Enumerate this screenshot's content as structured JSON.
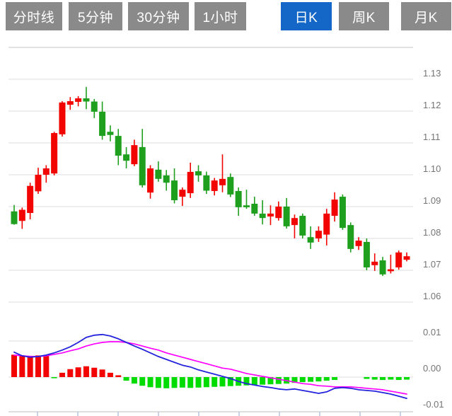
{
  "toolbar": {
    "tabs": [
      {
        "label": "分时线",
        "active": false
      },
      {
        "label": "5分钟",
        "active": false
      },
      {
        "label": "30分钟",
        "active": false
      },
      {
        "label": "1小时",
        "active": false
      },
      {
        "label": "日K",
        "active": true
      },
      {
        "label": "周K",
        "active": false
      },
      {
        "label": "月K",
        "active": false
      }
    ]
  },
  "colors": {
    "tab_bg": "#8a8a8a",
    "tab_active_bg": "#1467c6",
    "tab_text": "#ffffff",
    "candle_up": "#f20400",
    "candle_down": "#1ea01e",
    "hist_up": "#f20400",
    "hist_down": "#00dc00",
    "dif_line": "#2323dd",
    "dea_line": "#ff00ff",
    "grid": "#e4e4e4",
    "frame": "#d8d8d8",
    "bottom_axis": "#c9c9c9",
    "axis_tick": "#b9c8dc",
    "axis_label": "#757575"
  },
  "chart_data": {
    "type": "candlestick",
    "title": "",
    "xlabel": "",
    "ylabel": "",
    "grid": true,
    "legend_position": "none",
    "price_axis": {
      "tick_labels": [
        "1.13",
        "1.12",
        "1.11",
        "1.10",
        "1.09",
        "1.08",
        "1.07",
        "1.06"
      ],
      "tick_values": [
        1.13,
        1.12,
        1.11,
        1.1,
        1.09,
        1.08,
        1.07,
        1.06
      ],
      "range": [
        1.053,
        1.14
      ]
    },
    "indicator_axis": {
      "tick_labels": [
        "0.01",
        "0.00",
        "-0.01"
      ],
      "tick_values": [
        0.01,
        0.0,
        -0.01
      ],
      "range": [
        -0.011,
        0.012
      ]
    },
    "candles_ohlc": [
      [
        1.0885,
        1.0905,
        1.0843,
        1.0845
      ],
      [
        1.0855,
        1.0897,
        1.083,
        1.089
      ],
      [
        1.088,
        1.0975,
        1.086,
        1.0965
      ],
      [
        1.0948,
        1.1022,
        1.094,
        1.1
      ],
      [
        1.1,
        1.103,
        1.0975,
        1.102
      ],
      [
        1.1004,
        1.1135,
        1.0998,
        1.1131
      ],
      [
        1.1127,
        1.1231,
        1.112,
        1.1227
      ],
      [
        1.122,
        1.1244,
        1.1204,
        1.1231
      ],
      [
        1.1229,
        1.1247,
        1.1215,
        1.124
      ],
      [
        1.124,
        1.1276,
        1.1206,
        1.123
      ],
      [
        1.123,
        1.1238,
        1.1178,
        1.1198
      ],
      [
        1.1198,
        1.123,
        1.111,
        1.1122
      ],
      [
        1.1135,
        1.1155,
        1.1105,
        1.1125
      ],
      [
        1.1122,
        1.1144,
        1.103,
        1.106
      ],
      [
        1.1064,
        1.1087,
        1.102,
        1.1044
      ],
      [
        1.1033,
        1.111,
        1.1027,
        1.1093
      ],
      [
        1.1087,
        1.1144,
        1.096,
        1.0967
      ],
      [
        1.0944,
        1.103,
        1.0925,
        1.102
      ],
      [
        1.1016,
        1.1042,
        1.0978,
        1.0987
      ],
      [
        1.0998,
        1.1015,
        1.095,
        1.0975
      ],
      [
        1.0982,
        1.102,
        1.091,
        1.092
      ],
      [
        1.0931,
        1.096,
        1.0902,
        1.0953
      ],
      [
        1.0942,
        1.1038,
        1.0927,
        1.1009
      ],
      [
        1.1011,
        1.103,
        1.0978,
        1.0998
      ],
      [
        1.0998,
        1.101,
        1.094,
        1.095
      ],
      [
        1.0949,
        1.099,
        1.0935,
        1.0982
      ],
      [
        1.0967,
        1.1064,
        1.0945,
        1.0987
      ],
      [
        1.0993,
        1.1004,
        1.093,
        1.0938
      ],
      [
        1.0949,
        1.096,
        1.0871,
        1.0898
      ],
      [
        1.0904,
        1.0953,
        1.0893,
        1.0898
      ],
      [
        1.0909,
        1.0931,
        1.0871,
        1.0878
      ],
      [
        1.0878,
        1.092,
        1.0844,
        1.0864
      ],
      [
        1.0869,
        1.0904,
        1.0842,
        1.0878
      ],
      [
        1.0864,
        1.0916,
        1.0856,
        1.09
      ],
      [
        1.09,
        1.0927,
        1.0831,
        1.0838
      ],
      [
        1.0842,
        1.0875,
        1.08,
        1.0864
      ],
      [
        1.0871,
        1.0878,
        1.08,
        1.0809
      ],
      [
        1.0804,
        1.0838,
        1.0767,
        1.0787
      ],
      [
        1.08,
        1.0838,
        1.0789,
        1.0824
      ],
      [
        1.0812,
        1.0893,
        1.0778,
        1.0878
      ],
      [
        1.0871,
        1.0945,
        1.0853,
        1.0922
      ],
      [
        1.0931,
        1.0938,
        1.0827,
        1.0833
      ],
      [
        1.0842,
        1.085,
        1.0756,
        1.0767
      ],
      [
        1.0776,
        1.0804,
        1.0764,
        1.0793
      ],
      [
        1.0789,
        1.08,
        1.07,
        1.0709
      ],
      [
        1.0716,
        1.0753,
        1.0698,
        1.0727
      ],
      [
        1.0731,
        1.0742,
        1.0682,
        1.0687
      ],
      [
        1.0697,
        1.0749,
        1.069,
        1.0703
      ],
      [
        1.0709,
        1.0762,
        1.0702,
        1.0756
      ],
      [
        1.0733,
        1.0756,
        1.0728,
        1.0744
      ]
    ],
    "macd": {
      "histogram": [
        0.0062,
        0.006,
        0.0059,
        0.006,
        0.0061,
        -0.0003,
        0.0012,
        0.0022,
        0.0027,
        0.003,
        0.0026,
        0.0021,
        0.0012,
        0.0005,
        -0.001,
        -0.0018,
        -0.0024,
        -0.0028,
        -0.003,
        -0.0031,
        -0.003,
        -0.0029,
        -0.003,
        -0.0029,
        -0.0028,
        -0.0027,
        -0.0026,
        -0.0025,
        -0.0024,
        -0.0023,
        -0.0022,
        -0.0021,
        -0.002,
        -0.0019,
        -0.0018,
        -0.0016,
        -0.0014,
        -0.0013,
        -0.0012,
        -0.001,
        -0.0008,
        0.0,
        0.0,
        0.0,
        -0.0005,
        -0.0007,
        -0.0008,
        -0.0007,
        -0.0008,
        -0.0007
      ],
      "dif": [
        0.0069,
        0.0059,
        0.0055,
        0.0057,
        0.0061,
        0.0067,
        0.0075,
        0.0084,
        0.0096,
        0.011,
        0.0116,
        0.0118,
        0.0114,
        0.0106,
        0.0096,
        0.0086,
        0.0077,
        0.0067,
        0.0057,
        0.0049,
        0.0041,
        0.0033,
        0.0028,
        0.002,
        0.0014,
        0.0008,
        0.0002,
        -0.0004,
        -0.0012,
        -0.0018,
        -0.0022,
        -0.0026,
        -0.0029,
        -0.0033,
        -0.0035,
        -0.0033,
        -0.0037,
        -0.0041,
        -0.0045,
        -0.0041,
        -0.0031,
        -0.0029,
        -0.0031,
        -0.0035,
        -0.0037,
        -0.0039,
        -0.0043,
        -0.0047,
        -0.0053,
        -0.0059
      ],
      "dea": [
        0.0061,
        0.0059,
        0.0057,
        0.0057,
        0.0059,
        0.0063,
        0.0067,
        0.0073,
        0.0078,
        0.0086,
        0.0092,
        0.0096,
        0.0098,
        0.0098,
        0.0096,
        0.0092,
        0.0086,
        0.008,
        0.0075,
        0.0067,
        0.0061,
        0.0055,
        0.0049,
        0.0043,
        0.0037,
        0.0031,
        0.0025,
        0.0022,
        0.0016,
        0.001,
        0.0006,
        0.0002,
        -0.0002,
        -0.0006,
        -0.001,
        -0.0014,
        -0.0018,
        -0.002,
        -0.0024,
        -0.0025,
        -0.0027,
        -0.0027,
        -0.0027,
        -0.0029,
        -0.0031,
        -0.0033,
        -0.0035,
        -0.0039,
        -0.0043,
        -0.0047
      ]
    }
  }
}
